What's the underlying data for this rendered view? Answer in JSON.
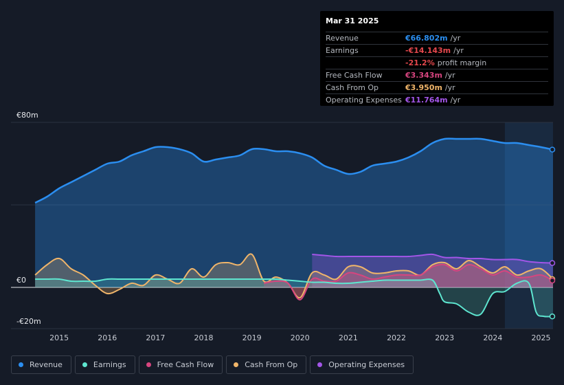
{
  "tooltip": {
    "date": "Mar 31 2025",
    "rows": [
      {
        "label": "Revenue",
        "value": "€66.802m",
        "unit": "/yr",
        "color": "#2b8ef0"
      },
      {
        "label": "Earnings",
        "value": "-€14.143m",
        "unit": "/yr",
        "color": "#e5484d"
      },
      {
        "label": "",
        "value": "-21.2%",
        "unit": "profit margin",
        "color": "#e5484d"
      },
      {
        "label": "Free Cash Flow",
        "value": "€3.343m",
        "unit": "/yr",
        "color": "#d7457f"
      },
      {
        "label": "Cash From Op",
        "value": "€3.950m",
        "unit": "/yr",
        "color": "#f0b56a"
      },
      {
        "label": "Operating Expenses",
        "value": "€11.764m",
        "unit": "/yr",
        "color": "#a356e8"
      }
    ]
  },
  "legend": [
    {
      "label": "Revenue",
      "color": "#2b8ef0"
    },
    {
      "label": "Earnings",
      "color": "#5ee6d0"
    },
    {
      "label": "Free Cash Flow",
      "color": "#d7457f"
    },
    {
      "label": "Cash From Op",
      "color": "#f0b56a"
    },
    {
      "label": "Operating Expenses",
      "color": "#a356e8"
    }
  ],
  "chart_data": {
    "type": "line",
    "title": "",
    "y_ticks": [
      {
        "label": "€80m",
        "value": 80
      },
      {
        "label": "€0",
        "value": 0
      },
      {
        "label": "-€20m",
        "value": -20
      }
    ],
    "x_ticks": [
      {
        "label": "2015",
        "value": 2015
      },
      {
        "label": "2016",
        "value": 2016
      },
      {
        "label": "2017",
        "value": 2017
      },
      {
        "label": "2018",
        "value": 2018
      },
      {
        "label": "2019",
        "value": 2019
      },
      {
        "label": "2020",
        "value": 2020
      },
      {
        "label": "2021",
        "value": 2021
      },
      {
        "label": "2022",
        "value": 2022
      },
      {
        "label": "2023",
        "value": 2023
      },
      {
        "label": "2024",
        "value": 2024
      },
      {
        "label": "2025",
        "value": 2025
      }
    ],
    "xlim": [
      2014.0,
      2025.25
    ],
    "ylim": [
      -20,
      80
    ],
    "highlight_start": 2024.25,
    "series": [
      {
        "name": "Revenue",
        "color": "#2b8ef0",
        "x": [
          2014.5,
          2014.75,
          2015.0,
          2015.25,
          2015.5,
          2015.75,
          2016.0,
          2016.25,
          2016.5,
          2016.75,
          2017.0,
          2017.25,
          2017.5,
          2017.75,
          2018.0,
          2018.25,
          2018.5,
          2018.75,
          2019.0,
          2019.25,
          2019.5,
          2019.75,
          2020.0,
          2020.25,
          2020.5,
          2020.75,
          2021.0,
          2021.25,
          2021.5,
          2021.75,
          2022.0,
          2022.25,
          2022.5,
          2022.75,
          2023.0,
          2023.25,
          2023.5,
          2023.75,
          2024.0,
          2024.25,
          2024.5,
          2024.75,
          2025.0,
          2025.25
        ],
        "values": [
          41,
          44,
          48,
          51,
          54,
          57,
          60,
          61,
          64,
          66,
          68,
          68,
          67,
          65,
          61,
          62,
          63,
          64,
          67,
          67,
          66,
          66,
          65,
          63,
          59,
          57,
          55,
          56,
          59,
          60,
          61,
          63,
          66,
          70,
          72,
          72,
          72,
          72,
          71,
          70,
          70,
          69,
          68,
          66.8
        ]
      },
      {
        "name": "Earnings",
        "color": "#5ee6d0",
        "x": [
          2014.5,
          2014.75,
          2015.0,
          2015.25,
          2015.5,
          2015.75,
          2016.0,
          2016.25,
          2016.5,
          2016.75,
          2017.0,
          2017.25,
          2017.5,
          2017.75,
          2018.0,
          2018.25,
          2018.5,
          2018.75,
          2019.0,
          2019.25,
          2019.5,
          2019.75,
          2020.0,
          2020.25,
          2020.5,
          2020.75,
          2021.0,
          2021.25,
          2021.5,
          2021.75,
          2022.0,
          2022.25,
          2022.5,
          2022.75,
          2022.9,
          2023.0,
          2023.25,
          2023.5,
          2023.75,
          2024.0,
          2024.25,
          2024.5,
          2024.75,
          2024.9,
          2025.05,
          2025.25
        ],
        "values": [
          4,
          4,
          4,
          3,
          3,
          3,
          4,
          4,
          4,
          4,
          4,
          4,
          4,
          4,
          4,
          4,
          4,
          4,
          4,
          4,
          4,
          3.5,
          3,
          2.5,
          2.5,
          2,
          2,
          2.5,
          3,
          3.5,
          3.5,
          3.5,
          3.5,
          3.5,
          -3,
          -7,
          -8,
          -12,
          -13,
          -3,
          -2,
          2,
          2,
          -12,
          -14,
          -14.1
        ]
      },
      {
        "name": "Free Cash Flow",
        "color": "#d7457f",
        "x": [
          2019.25,
          2019.5,
          2019.75,
          2020.0,
          2020.25,
          2020.5,
          2020.75,
          2021.0,
          2021.25,
          2021.5,
          2021.75,
          2022.0,
          2022.25,
          2022.5,
          2022.75,
          2023.0,
          2023.25,
          2023.5,
          2023.75,
          2024.0,
          2024.25,
          2024.5,
          2024.75,
          2025.0,
          2025.25
        ],
        "values": [
          2,
          3,
          2,
          -6,
          4,
          3,
          3,
          7,
          6,
          4,
          5,
          6,
          6,
          6,
          10,
          11,
          8,
          11,
          9,
          6,
          8,
          5,
          5,
          6,
          3.3
        ]
      },
      {
        "name": "Cash From Op",
        "color": "#f0b56a",
        "x": [
          2014.5,
          2014.75,
          2015.0,
          2015.25,
          2015.5,
          2015.75,
          2016.0,
          2016.25,
          2016.5,
          2016.75,
          2017.0,
          2017.25,
          2017.5,
          2017.75,
          2018.0,
          2018.25,
          2018.5,
          2018.75,
          2019.0,
          2019.25,
          2019.5,
          2019.75,
          2020.0,
          2020.25,
          2020.5,
          2020.75,
          2021.0,
          2021.25,
          2021.5,
          2021.75,
          2022.0,
          2022.25,
          2022.5,
          2022.75,
          2023.0,
          2023.25,
          2023.5,
          2023.75,
          2024.0,
          2024.25,
          2024.5,
          2024.75,
          2025.0,
          2025.25
        ],
        "values": [
          6,
          11,
          14,
          9,
          6,
          1,
          -3,
          -1,
          2,
          1,
          6,
          4,
          2,
          9,
          5,
          11,
          12,
          11,
          16,
          3,
          5,
          2,
          -5,
          7,
          6,
          4,
          10,
          10,
          7,
          7,
          8,
          8,
          6,
          11,
          12,
          9,
          13,
          10,
          7,
          10,
          6,
          8,
          9,
          4.0
        ]
      },
      {
        "name": "Operating Expenses",
        "color": "#a356e8",
        "x": [
          2020.25,
          2020.5,
          2020.75,
          2021.0,
          2021.25,
          2021.5,
          2021.75,
          2022.0,
          2022.25,
          2022.5,
          2022.75,
          2023.0,
          2023.25,
          2023.5,
          2023.75,
          2024.0,
          2024.25,
          2024.5,
          2024.75,
          2025.0,
          2025.25
        ],
        "values": [
          16,
          15.5,
          15,
          15,
          15,
          15,
          15,
          15,
          15,
          15.5,
          16,
          14.5,
          14.5,
          14,
          14,
          13.5,
          13.5,
          13.5,
          12.5,
          12,
          11.8
        ]
      }
    ]
  }
}
